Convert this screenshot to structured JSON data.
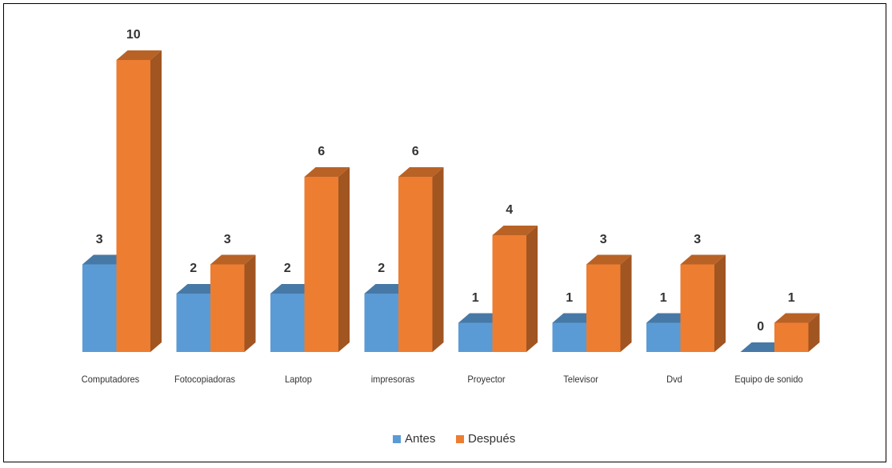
{
  "chart_data": {
    "type": "bar3d",
    "categories": [
      "Computadores",
      "Fotocopiadoras",
      "Laptop",
      "impresoras",
      "Proyector",
      "Televisor",
      "Dvd",
      "Equipo de sonido"
    ],
    "series": [
      {
        "name": "Antes",
        "color": "#5b9bd5",
        "values": [
          3,
          2,
          2,
          2,
          1,
          1,
          1,
          0
        ]
      },
      {
        "name": "Después",
        "color": "#ed7d31",
        "values": [
          10,
          3,
          6,
          6,
          4,
          3,
          3,
          1
        ]
      }
    ],
    "legend": "bottom"
  }
}
